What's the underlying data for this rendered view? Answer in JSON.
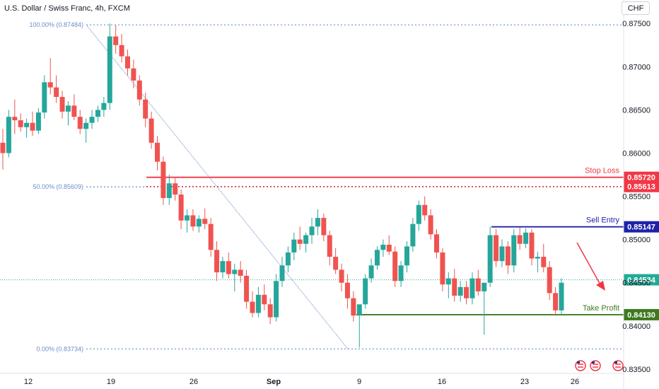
{
  "header": {
    "title": "U.S. Dollar / Swiss Franc, 4h, FXCM",
    "currency": "CHF"
  },
  "colors": {
    "up": "#26a69a",
    "down": "#ef5350",
    "stop_loss": "#f23645",
    "sell_entry": "#1e22aa",
    "take_profit": "#3d7a1e",
    "fib": "#6a8fc8",
    "current": "#22ab94"
  },
  "chart_data": {
    "type": "candlestick",
    "x_ticks": [
      "12",
      "19",
      "26",
      "Sep",
      "9",
      "16",
      "23",
      "26"
    ],
    "y_ticks": [
      "0.87500",
      "0.87000",
      "0.86500",
      "0.86000",
      "0.85500",
      "0.85000",
      "0.84500",
      "0.84000",
      "0.83500"
    ],
    "ylim": [
      0.8345,
      0.8769
    ],
    "fib_levels": [
      {
        "label": "100.00% (0.87484)",
        "value": 0.87484
      },
      {
        "label": "50.00% (0.85609)",
        "value": 0.85609
      },
      {
        "label": "0.00% (0.83734)",
        "value": 0.83734
      }
    ],
    "levels": [
      {
        "name": "Stop Loss",
        "value": 0.8572,
        "label": "0.85720",
        "color": "#f23645"
      },
      {
        "name": "",
        "value": 0.85613,
        "label": "0.85613",
        "color": "#f23645"
      },
      {
        "name": "Sell Entry",
        "value": 0.85147,
        "label": "0.85147",
        "color": "#1e22aa"
      },
      {
        "name": "",
        "value": 0.84534,
        "label": "0.84534",
        "color": "#22ab94"
      },
      {
        "name": "Take Profit",
        "value": 0.8413,
        "label": "0.84130",
        "color": "#3d7a1e"
      }
    ],
    "candles_ohlc": [
      [
        0.8612,
        0.8628,
        0.8581,
        0.86
      ],
      [
        0.86,
        0.865,
        0.8595,
        0.8642
      ],
      [
        0.8642,
        0.8662,
        0.8622,
        0.8638
      ],
      [
        0.8638,
        0.8646,
        0.8625,
        0.863
      ],
      [
        0.863,
        0.864,
        0.8618,
        0.8635
      ],
      [
        0.8635,
        0.8648,
        0.862,
        0.8626
      ],
      [
        0.8626,
        0.8652,
        0.8622,
        0.8647
      ],
      [
        0.8647,
        0.869,
        0.864,
        0.8682
      ],
      [
        0.8682,
        0.871,
        0.8668,
        0.8676
      ],
      [
        0.8676,
        0.869,
        0.8658,
        0.8665
      ],
      [
        0.8665,
        0.8672,
        0.864,
        0.8648
      ],
      [
        0.8648,
        0.866,
        0.8632,
        0.8655
      ],
      [
        0.8655,
        0.8668,
        0.8638,
        0.8642
      ],
      [
        0.8642,
        0.865,
        0.8622,
        0.8628
      ],
      [
        0.8628,
        0.864,
        0.8612,
        0.8635
      ],
      [
        0.8635,
        0.865,
        0.8628,
        0.8642
      ],
      [
        0.8642,
        0.8655,
        0.8636,
        0.865
      ],
      [
        0.865,
        0.8665,
        0.8642,
        0.8658
      ],
      [
        0.8658,
        0.875,
        0.865,
        0.8735
      ],
      [
        0.8735,
        0.8748,
        0.8715,
        0.8725
      ],
      [
        0.8725,
        0.8738,
        0.8705,
        0.8712
      ],
      [
        0.8712,
        0.872,
        0.869,
        0.8698
      ],
      [
        0.8698,
        0.8708,
        0.8675,
        0.8684
      ],
      [
        0.8684,
        0.869,
        0.8655,
        0.8662
      ],
      [
        0.8662,
        0.867,
        0.863,
        0.864
      ],
      [
        0.864,
        0.8648,
        0.8605,
        0.8612
      ],
      [
        0.8612,
        0.862,
        0.858,
        0.859
      ],
      [
        0.859,
        0.8596,
        0.854,
        0.8548
      ],
      [
        0.8548,
        0.8575,
        0.854,
        0.8565
      ],
      [
        0.8565,
        0.8572,
        0.8545,
        0.8552
      ],
      [
        0.8552,
        0.8558,
        0.8512,
        0.8522
      ],
      [
        0.8522,
        0.8535,
        0.8508,
        0.8528
      ],
      [
        0.8528,
        0.8535,
        0.851,
        0.8515
      ],
      [
        0.8515,
        0.8528,
        0.8508,
        0.8524
      ],
      [
        0.8524,
        0.8536,
        0.8512,
        0.8518
      ],
      [
        0.8518,
        0.8525,
        0.848,
        0.8488
      ],
      [
        0.8488,
        0.8498,
        0.8452,
        0.8462
      ],
      [
        0.8462,
        0.848,
        0.8455,
        0.8475
      ],
      [
        0.8475,
        0.8485,
        0.8455,
        0.846
      ],
      [
        0.846,
        0.8472,
        0.844,
        0.8465
      ],
      [
        0.8465,
        0.8475,
        0.845,
        0.8458
      ],
      [
        0.8458,
        0.8465,
        0.842,
        0.8428
      ],
      [
        0.8428,
        0.844,
        0.841,
        0.8415
      ],
      [
        0.8415,
        0.8445,
        0.841,
        0.8436
      ],
      [
        0.8436,
        0.8448,
        0.8418,
        0.8425
      ],
      [
        0.8425,
        0.8432,
        0.8402,
        0.841
      ],
      [
        0.841,
        0.846,
        0.8405,
        0.8452
      ],
      [
        0.8452,
        0.848,
        0.8445,
        0.847
      ],
      [
        0.847,
        0.8492,
        0.8462,
        0.8485
      ],
      [
        0.8485,
        0.8508,
        0.8476,
        0.85
      ],
      [
        0.85,
        0.8515,
        0.8488,
        0.8495
      ],
      [
        0.8495,
        0.8508,
        0.8485,
        0.8505
      ],
      [
        0.8505,
        0.8525,
        0.8495,
        0.8515
      ],
      [
        0.8515,
        0.8535,
        0.8505,
        0.8525
      ],
      [
        0.8525,
        0.853,
        0.8498,
        0.8505
      ],
      [
        0.8505,
        0.851,
        0.847,
        0.848
      ],
      [
        0.848,
        0.849,
        0.846,
        0.8465
      ],
      [
        0.8465,
        0.8472,
        0.844,
        0.845
      ],
      [
        0.845,
        0.846,
        0.842,
        0.8432
      ],
      [
        0.8432,
        0.844,
        0.8405,
        0.8412
      ],
      [
        0.8412,
        0.842,
        0.8375,
        0.8425
      ],
      [
        0.8425,
        0.846,
        0.842,
        0.8455
      ],
      [
        0.8455,
        0.8478,
        0.845,
        0.847
      ],
      [
        0.847,
        0.8492,
        0.8465,
        0.8488
      ],
      [
        0.8488,
        0.85,
        0.848,
        0.8494
      ],
      [
        0.8494,
        0.8505,
        0.8482,
        0.8486
      ],
      [
        0.8486,
        0.8492,
        0.8445,
        0.8452
      ],
      [
        0.8452,
        0.8475,
        0.8445,
        0.847
      ],
      [
        0.847,
        0.8498,
        0.8462,
        0.8492
      ],
      [
        0.8492,
        0.8525,
        0.8486,
        0.8518
      ],
      [
        0.8518,
        0.8545,
        0.851,
        0.854
      ],
      [
        0.854,
        0.855,
        0.8522,
        0.8528
      ],
      [
        0.8528,
        0.8535,
        0.85,
        0.8506
      ],
      [
        0.8506,
        0.8512,
        0.8478,
        0.8485
      ],
      [
        0.8485,
        0.849,
        0.844,
        0.8448
      ],
      [
        0.8448,
        0.8462,
        0.8432,
        0.8455
      ],
      [
        0.8455,
        0.8466,
        0.8428,
        0.8435
      ],
      [
        0.8435,
        0.8452,
        0.8428,
        0.8445
      ],
      [
        0.8445,
        0.8452,
        0.8425,
        0.8432
      ],
      [
        0.8432,
        0.8462,
        0.8425,
        0.8455
      ],
      [
        0.8455,
        0.8465,
        0.8435,
        0.844
      ],
      [
        0.844,
        0.8448,
        0.839,
        0.845
      ],
      [
        0.845,
        0.8515,
        0.8445,
        0.8505
      ],
      [
        0.8505,
        0.8512,
        0.8468,
        0.8475
      ],
      [
        0.8475,
        0.85,
        0.8468,
        0.8492
      ],
      [
        0.8492,
        0.8498,
        0.846,
        0.847
      ],
      [
        0.847,
        0.8512,
        0.8462,
        0.8505
      ],
      [
        0.8505,
        0.8514,
        0.8488,
        0.8495
      ],
      [
        0.8495,
        0.8513,
        0.849,
        0.8508
      ],
      [
        0.8508,
        0.8512,
        0.847,
        0.8478
      ],
      [
        0.8478,
        0.8486,
        0.8462,
        0.848
      ],
      [
        0.848,
        0.8495,
        0.8462,
        0.8468
      ],
      [
        0.8468,
        0.8475,
        0.843,
        0.8438
      ],
      [
        0.8438,
        0.8445,
        0.8412,
        0.8418
      ],
      [
        0.8418,
        0.8455,
        0.8414,
        0.845
      ]
    ],
    "annotations": [
      "Stop Loss",
      "Sell Entry",
      "Take Profit"
    ]
  }
}
